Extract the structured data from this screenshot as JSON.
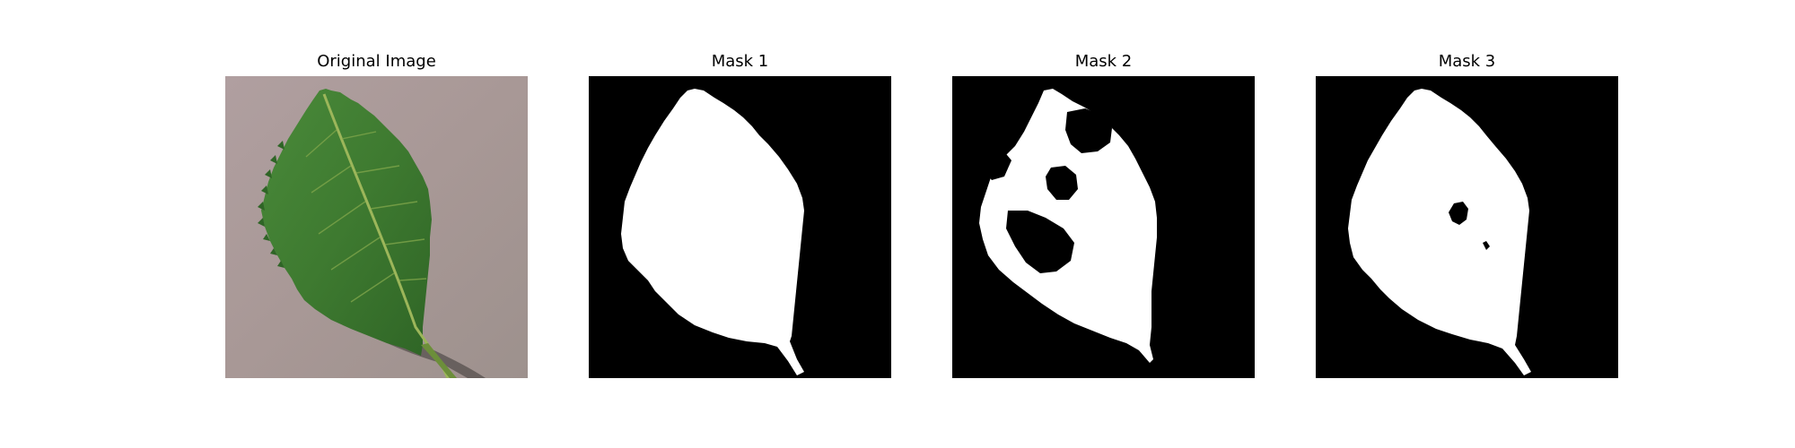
{
  "figure": {
    "panels": [
      {
        "title": "Original Image",
        "kind": "photo"
      },
      {
        "title": "Mask 1",
        "kind": "binary-mask"
      },
      {
        "title": "Mask 2",
        "kind": "binary-mask"
      },
      {
        "title": "Mask 3",
        "kind": "binary-mask"
      }
    ]
  },
  "colors": {
    "background": "#ffffff",
    "mask_foreground": "#ffffff",
    "mask_background": "#000000",
    "leaf_green": "#3f7a32",
    "surface_mauve": "#a99a98"
  }
}
